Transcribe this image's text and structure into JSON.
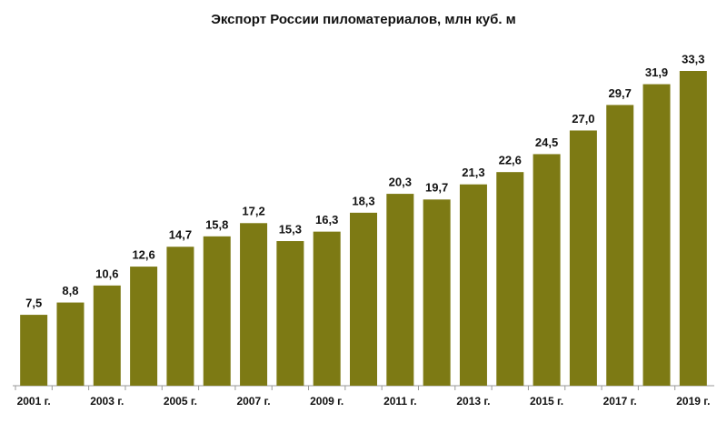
{
  "chart_data": {
    "type": "bar",
    "title": "Экспорт России пиломатериалов, млн куб. м",
    "categories": [
      "2001 г.",
      null,
      "2003 г.",
      null,
      "2005 г.",
      null,
      "2007 г.",
      null,
      "2009 г.",
      null,
      "2011 г.",
      null,
      "2013 г.",
      null,
      "2015 г.",
      null,
      "2017 г.",
      null,
      "2019 г."
    ],
    "values": [
      7.5,
      8.8,
      10.6,
      12.6,
      14.7,
      15.8,
      17.2,
      15.3,
      16.3,
      18.3,
      20.3,
      19.7,
      21.3,
      22.6,
      24.5,
      27.0,
      29.7,
      31.9,
      33.3
    ],
    "value_labels": [
      "7,5",
      "8,8",
      "10,6",
      "12,6",
      "14,7",
      "15,8",
      "17,2",
      "15,3",
      "16,3",
      "18,3",
      "20,3",
      "19,7",
      "21,3",
      "22,6",
      "24,5",
      "27,0",
      "29,7",
      "31,9",
      "33,3"
    ],
    "color": "#7d7a14"
  }
}
